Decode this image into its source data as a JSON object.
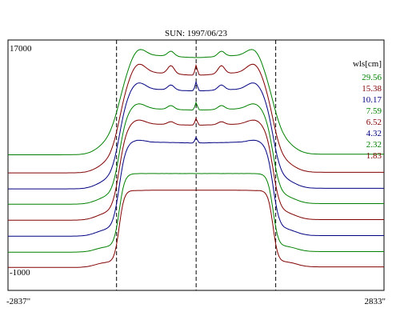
{
  "chart_data": {
    "type": "line",
    "title": "SUN: 1997/06/23",
    "xlabel": "",
    "ylabel": "",
    "x_min_label": "-2837\"",
    "x_max_label": "2833\"",
    "y_max_label": "17000",
    "y_min_label": "-1000",
    "xlim": [
      -2837,
      2833
    ],
    "ylim": [
      -1000,
      17000
    ],
    "grid": false,
    "legend_title": "wls[cm]",
    "legend_position": "right",
    "vertical_markers_x": [
      -1200,
      0,
      1200
    ],
    "series": [
      {
        "name": "29.56",
        "color": "#008000",
        "baseline": 8750,
        "plateau": 15900,
        "edge_sharpness": 0.55,
        "limb": [
          1.6,
          0.45
        ],
        "center_spike": 0.0,
        "side_bumps": 0.05,
        "noise": 0.15
      },
      {
        "name": "15.38",
        "color": "#800000",
        "baseline": 7450,
        "plateau": 14650,
        "edge_sharpness": 0.65,
        "limb": [
          1.8,
          0.5
        ],
        "center_spike": 0.1,
        "side_bumps": 0.08,
        "noise": 0.15
      },
      {
        "name": "10.17",
        "color": "#000080",
        "baseline": 6300,
        "plateau": 13450,
        "edge_sharpness": 0.75,
        "limb": [
          1.3,
          0.3
        ],
        "center_spike": 0.09,
        "side_bumps": 0.05,
        "noise": 0.2
      },
      {
        "name": "7.59",
        "color": "#008000",
        "baseline": 5200,
        "plateau": 12050,
        "edge_sharpness": 0.85,
        "limb": [
          1.0,
          0.25
        ],
        "center_spike": 0.08,
        "side_bumps": 0.04,
        "noise": 0.22
      },
      {
        "name": "6.52",
        "color": "#800000",
        "baseline": 4050,
        "plateau": 10950,
        "edge_sharpness": 0.9,
        "limb": [
          0.8,
          0.2
        ],
        "center_spike": 0.07,
        "side_bumps": 0.03,
        "noise": 0.25
      },
      {
        "name": "4.32",
        "color": "#000080",
        "baseline": 2900,
        "plateau": 9650,
        "edge_sharpness": 1.0,
        "limb": [
          0.4,
          0.15
        ],
        "center_spike": 0.06,
        "side_bumps": 0.0,
        "noise": 0.3
      },
      {
        "name": "2.32",
        "color": "#008000",
        "baseline": 1750,
        "plateau": 7400,
        "edge_sharpness": 1.2,
        "limb": [
          0.0,
          0.0
        ],
        "center_spike": 0.0,
        "side_bumps": 0.0,
        "noise": 0.2
      },
      {
        "name": "1.83",
        "color": "#800000",
        "baseline": 650,
        "plateau": 6200,
        "edge_sharpness": 1.3,
        "limb": [
          -0.05,
          0.0
        ],
        "center_spike": 0.0,
        "side_bumps": 0.0,
        "noise": 0.15
      }
    ]
  }
}
